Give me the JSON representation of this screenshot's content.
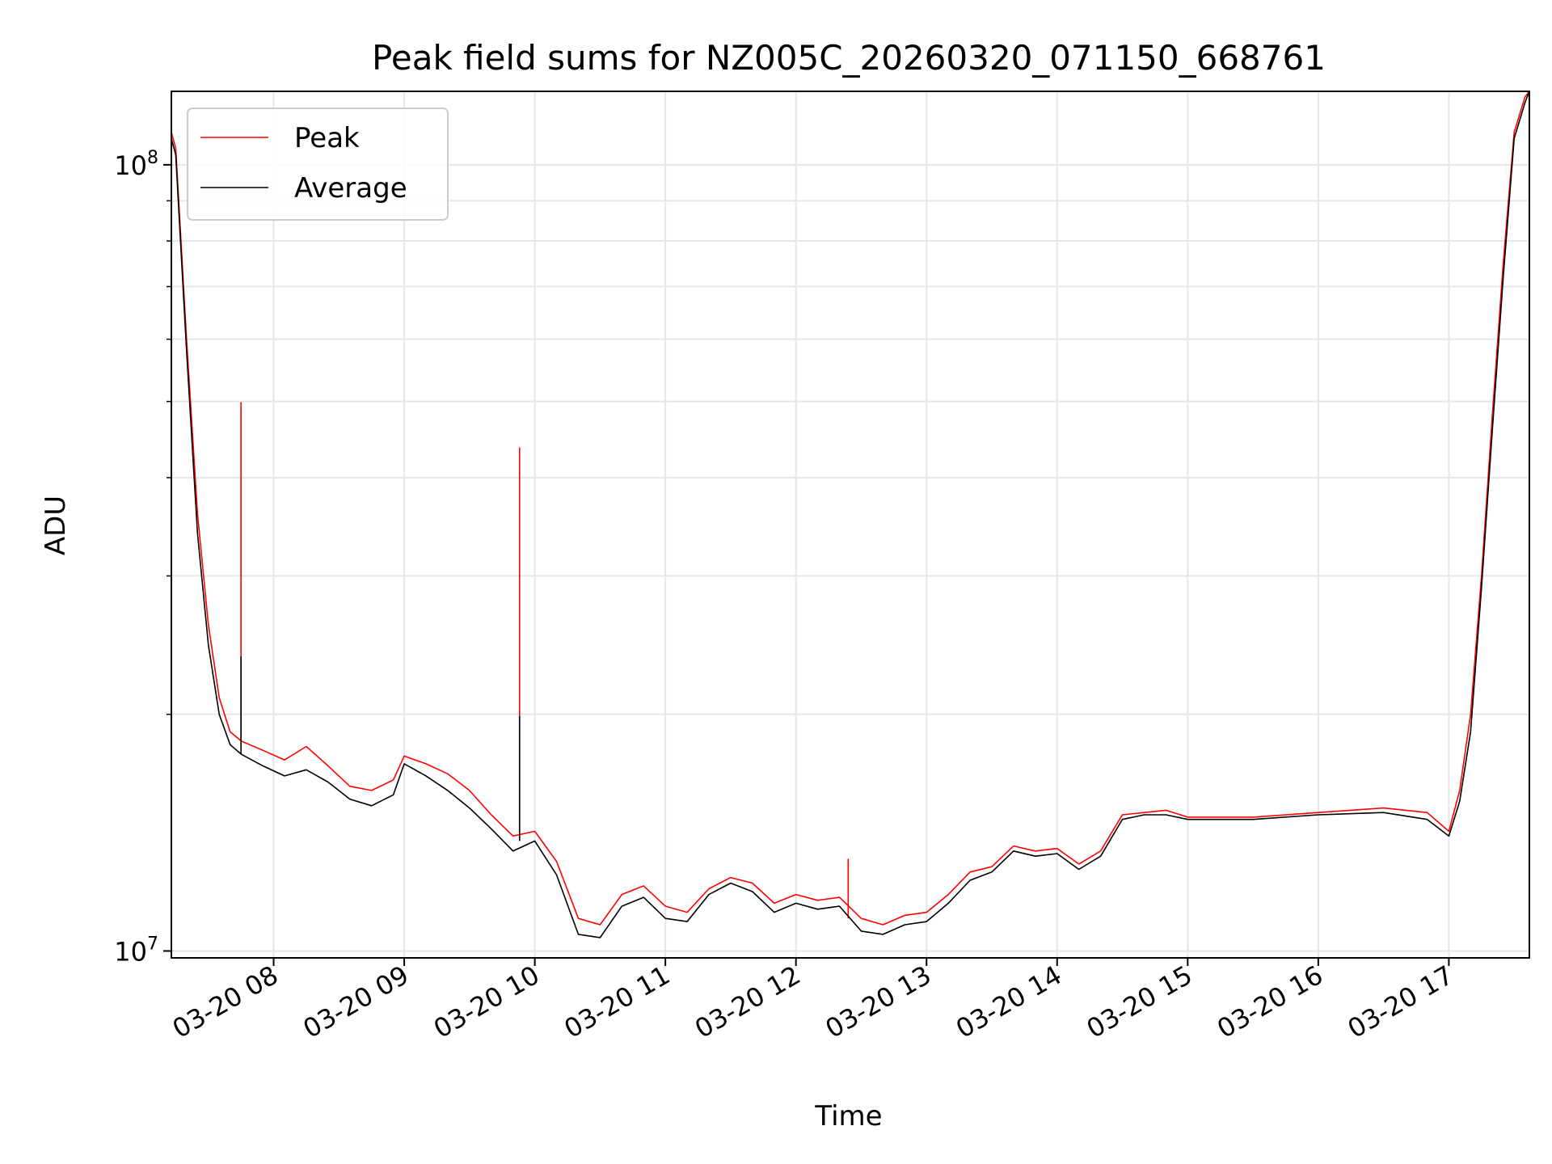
{
  "chart_data": {
    "type": "line",
    "title": "Peak field sums for NZ005C_20260320_071150_668761",
    "xlabel": "Time",
    "ylabel": "ADU",
    "y_scale": "log",
    "ylim": [
      9800000,
      124000000
    ],
    "xlim": [
      "03-20 07:13",
      "03-20 17:37"
    ],
    "x_ticks": [
      {
        "value": "03-20 08:00",
        "label": "03-20 08"
      },
      {
        "value": "03-20 09:00",
        "label": "03-20 09"
      },
      {
        "value": "03-20 10:00",
        "label": "03-20 10"
      },
      {
        "value": "03-20 11:00",
        "label": "03-20 11"
      },
      {
        "value": "03-20 12:00",
        "label": "03-20 12"
      },
      {
        "value": "03-20 13:00",
        "label": "03-20 13"
      },
      {
        "value": "03-20 14:00",
        "label": "03-20 14"
      },
      {
        "value": "03-20 15:00",
        "label": "03-20 15"
      },
      {
        "value": "03-20 16:00",
        "label": "03-20 16"
      },
      {
        "value": "03-20 17:00",
        "label": "03-20 17"
      }
    ],
    "y_ticks": [
      {
        "value": 10000000,
        "base": "10",
        "exp": "7"
      },
      {
        "value": 100000000,
        "base": "10",
        "exp": "8"
      }
    ],
    "grid": true,
    "legend": "top-left",
    "series": [
      {
        "name": "Peak",
        "color": "#ff0000",
        "x": [
          "03-20 07:13",
          "03-20 07:15",
          "03-20 07:20",
          "03-20 07:25",
          "03-20 07:30",
          "03-20 07:35",
          "03-20 07:40",
          "03-20 07:45",
          "03-20 07:55",
          "03-20 08:05",
          "03-20 08:15",
          "03-20 08:25",
          "03-20 08:35",
          "03-20 08:45",
          "03-20 08:55",
          "03-20 09:00",
          "03-20 09:10",
          "03-20 09:20",
          "03-20 09:30",
          "03-20 09:40",
          "03-20 09:50",
          "03-20 10:00",
          "03-20 10:10",
          "03-20 10:20",
          "03-20 10:30",
          "03-20 10:40",
          "03-20 10:50",
          "03-20 11:00",
          "03-20 11:10",
          "03-20 11:20",
          "03-20 11:30",
          "03-20 11:40",
          "03-20 11:50",
          "03-20 12:00",
          "03-20 12:10",
          "03-20 12:20",
          "03-20 12:30",
          "03-20 12:40",
          "03-20 12:50",
          "03-20 13:00",
          "03-20 13:10",
          "03-20 13:20",
          "03-20 13:30",
          "03-20 13:40",
          "03-20 13:50",
          "03-20 14:00",
          "03-20 14:10",
          "03-20 14:20",
          "03-20 14:30",
          "03-20 14:40",
          "03-20 14:50",
          "03-20 15:00",
          "03-20 15:30",
          "03-20 16:00",
          "03-20 16:30",
          "03-20 16:50",
          "03-20 17:00",
          "03-20 17:05",
          "03-20 17:10",
          "03-20 17:15",
          "03-20 17:20",
          "03-20 17:25",
          "03-20 17:30",
          "03-20 17:35",
          "03-20 17:37"
        ],
        "values": [
          110000000,
          105000000,
          60000000,
          36000000,
          26000000,
          21000000,
          19000000,
          18500000,
          18000000,
          17500000,
          18200000,
          17200000,
          16200000,
          16000000,
          16500000,
          17700000,
          17300000,
          16800000,
          16000000,
          14900000,
          14000000,
          14200000,
          13000000,
          11000000,
          10800000,
          11800000,
          12100000,
          11400000,
          11200000,
          12000000,
          12400000,
          12200000,
          11500000,
          11800000,
          11600000,
          11700000,
          11000000,
          10800000,
          11100000,
          11200000,
          11800000,
          12600000,
          12800000,
          13600000,
          13400000,
          13500000,
          12900000,
          13400000,
          14900000,
          15000000,
          15100000,
          14800000,
          14800000,
          15000000,
          15200000,
          15000000,
          14200000,
          16000000,
          20000000,
          30000000,
          48000000,
          75000000,
          110000000,
          122000000,
          124000000
        ],
        "spikes": [
          {
            "x": "03-20 07:45",
            "value": 49900000
          },
          {
            "x": "03-20 09:53",
            "value": 43700000
          },
          {
            "x": "03-20 12:24",
            "value": 13100000
          }
        ]
      },
      {
        "name": "Average",
        "color": "#000000",
        "x": [
          "03-20 07:13",
          "03-20 07:15",
          "03-20 07:20",
          "03-20 07:25",
          "03-20 07:30",
          "03-20 07:35",
          "03-20 07:40",
          "03-20 07:45",
          "03-20 07:55",
          "03-20 08:05",
          "03-20 08:15",
          "03-20 08:25",
          "03-20 08:35",
          "03-20 08:45",
          "03-20 08:55",
          "03-20 09:00",
          "03-20 09:10",
          "03-20 09:20",
          "03-20 09:30",
          "03-20 09:40",
          "03-20 09:50",
          "03-20 10:00",
          "03-20 10:10",
          "03-20 10:20",
          "03-20 10:30",
          "03-20 10:40",
          "03-20 10:50",
          "03-20 11:00",
          "03-20 11:10",
          "03-20 11:20",
          "03-20 11:30",
          "03-20 11:40",
          "03-20 11:50",
          "03-20 12:00",
          "03-20 12:10",
          "03-20 12:20",
          "03-20 12:30",
          "03-20 12:40",
          "03-20 12:50",
          "03-20 13:00",
          "03-20 13:10",
          "03-20 13:20",
          "03-20 13:30",
          "03-20 13:40",
          "03-20 13:50",
          "03-20 14:00",
          "03-20 14:10",
          "03-20 14:20",
          "03-20 14:30",
          "03-20 14:40",
          "03-20 14:50",
          "03-20 15:00",
          "03-20 15:30",
          "03-20 16:00",
          "03-20 16:30",
          "03-20 16:50",
          "03-20 17:00",
          "03-20 17:05",
          "03-20 17:10",
          "03-20 17:15",
          "03-20 17:20",
          "03-20 17:25",
          "03-20 17:30",
          "03-20 17:35",
          "03-20 17:37"
        ],
        "values": [
          108000000,
          103000000,
          58000000,
          34000000,
          24500000,
          20000000,
          18300000,
          17800000,
          17200000,
          16700000,
          17000000,
          16400000,
          15600000,
          15300000,
          15800000,
          17300000,
          16700000,
          16000000,
          15200000,
          14300000,
          13400000,
          13800000,
          12500000,
          10500000,
          10400000,
          11400000,
          11700000,
          11000000,
          10900000,
          11800000,
          12200000,
          11900000,
          11200000,
          11500000,
          11300000,
          11400000,
          10600000,
          10500000,
          10800000,
          10900000,
          11500000,
          12300000,
          12600000,
          13400000,
          13200000,
          13300000,
          12700000,
          13200000,
          14700000,
          14900000,
          14900000,
          14700000,
          14700000,
          14900000,
          15000000,
          14700000,
          14000000,
          15500000,
          19000000,
          29000000,
          46000000,
          72000000,
          108000000,
          120000000,
          124000000
        ],
        "spikes": [
          {
            "x": "03-20 07:45",
            "value": 23700000
          },
          {
            "x": "03-20 09:53",
            "value": 19900000
          }
        ]
      }
    ]
  }
}
